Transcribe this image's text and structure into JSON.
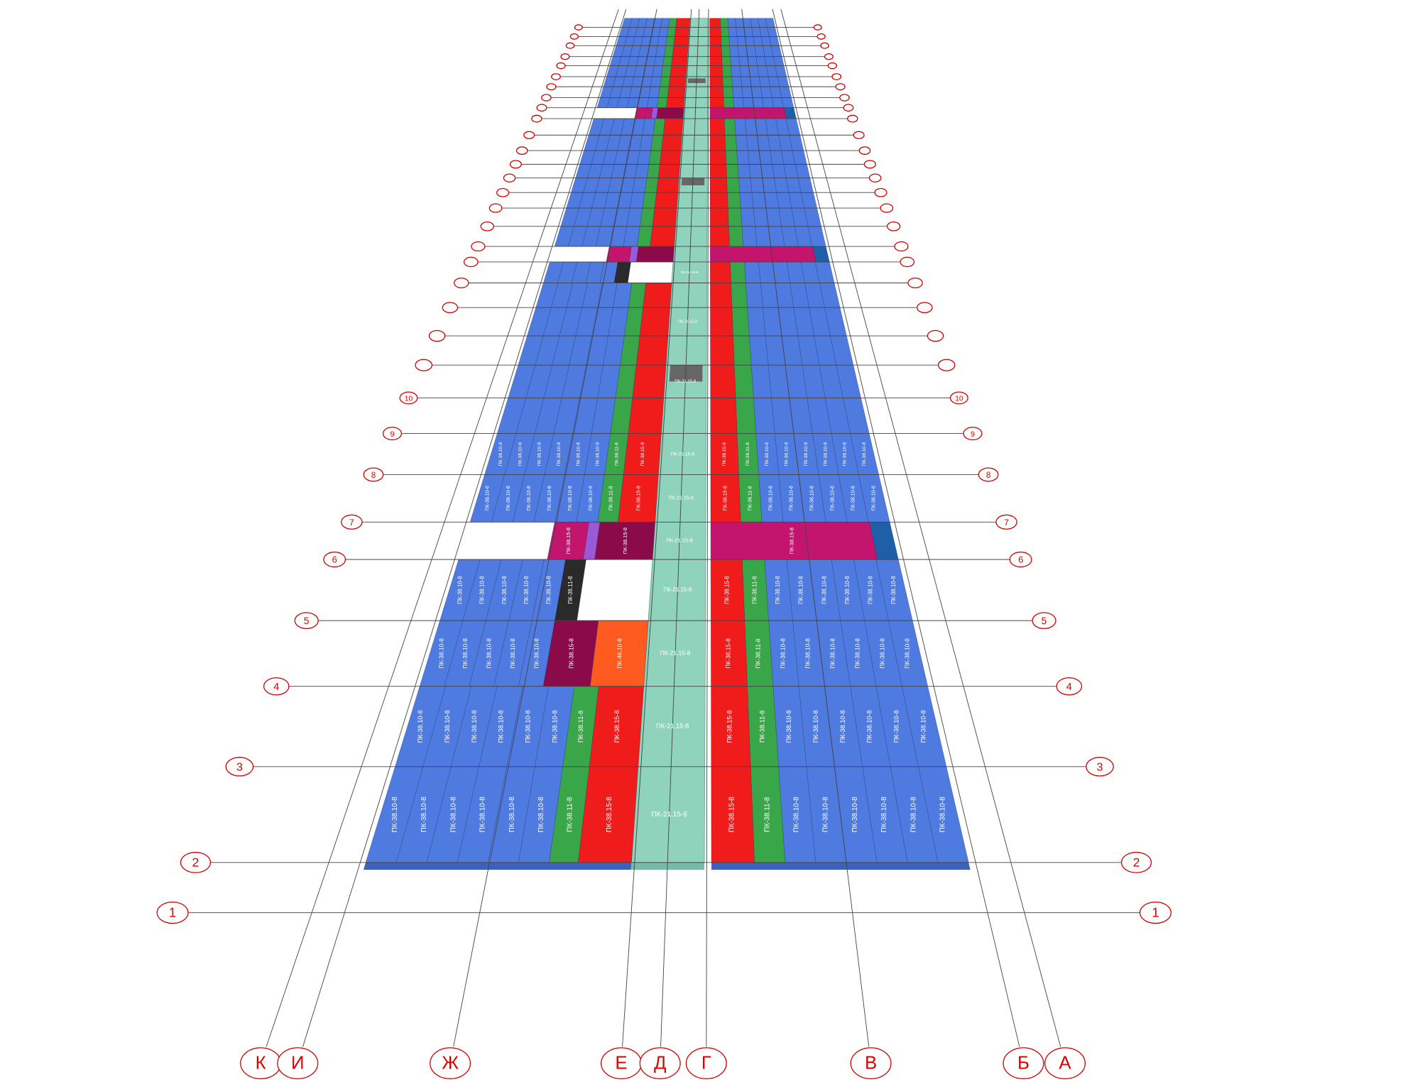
{
  "columns": [
    "К",
    "И",
    "Ж",
    "Е",
    "Д",
    "Г",
    "В",
    "Б",
    "А"
  ],
  "rows": [
    "1",
    "2",
    "3",
    "4",
    "5",
    "6",
    "7",
    "8",
    "9",
    "10"
  ],
  "slab_labels": {
    "pk_38_10": "ПК-38.10-8",
    "pk_38_11": "ПК-38.11-8",
    "pk_38_15": "ПК-38.15-8",
    "pk_21_15": "ПК-21.15-8",
    "pk_46_10": "ПК-46.10-8"
  }
}
